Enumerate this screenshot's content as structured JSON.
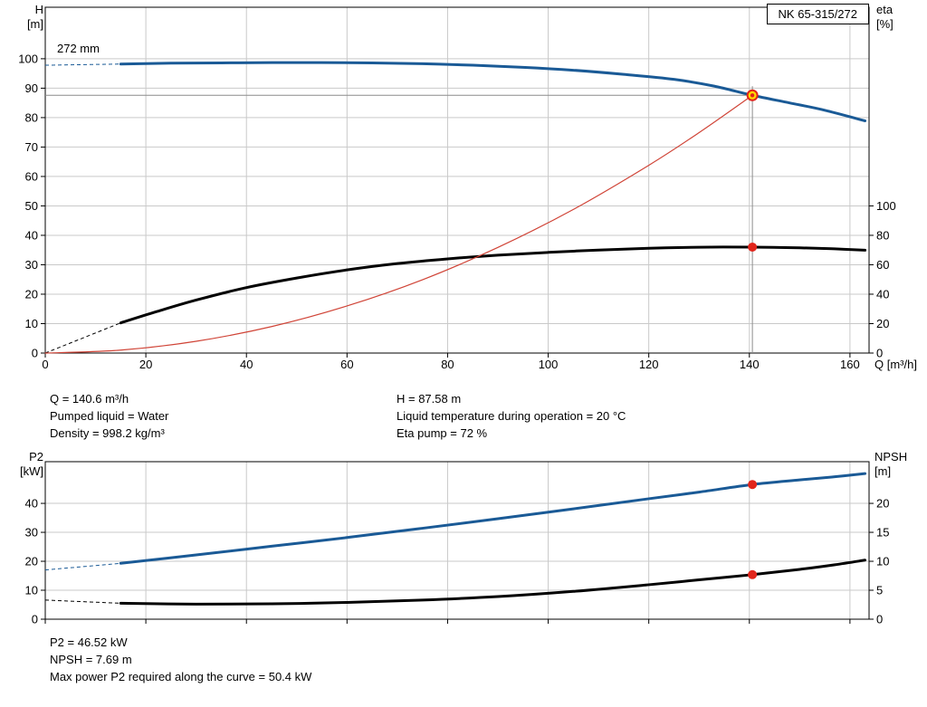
{
  "colors": {
    "curve_blue": "#1a5a96",
    "curve_black": "#000000",
    "curve_red": "#d04437",
    "point_red": "#e1251b",
    "point_yellow": "#ffd800",
    "grid": "#c9c9c9",
    "frame": "#000000",
    "crosshair": "#8c8c8c"
  },
  "top_chart": {
    "title_box": "NK 65-315/272",
    "impeller_trim_label": "272 mm",
    "left_axis_title": [
      "H",
      "[m]"
    ],
    "right_axis_title": [
      "eta",
      "[%]"
    ],
    "x_axis_title": "Q [m³/h]"
  },
  "bottom_chart": {
    "left_axis_title": [
      "P2",
      "[kW]"
    ],
    "right_axis_title": [
      "NPSH",
      "[m]"
    ]
  },
  "info_top": {
    "left": [
      "Q = 140.6 m³/h",
      "Pumped liquid = Water",
      "Density = 998.2 kg/m³"
    ],
    "right": [
      "H = 87.58 m",
      "Liquid temperature during operation = 20 °C",
      "Eta pump = 72 %"
    ]
  },
  "info_bottom": [
    "P2 = 46.52 kW",
    "NPSH = 7.69 m",
    "Max power P2 required along the curve = 50.4 kW"
  ],
  "chart_data": [
    {
      "type": "line",
      "title": "NK 65-315/272",
      "xlabel": "Q [m³/h]",
      "x_ticks": [
        0,
        20,
        40,
        60,
        80,
        100,
        120,
        140,
        160
      ],
      "xlim": [
        0,
        163.8
      ],
      "left_axis": {
        "label": "H [m]",
        "ticks": [
          0,
          10,
          20,
          30,
          40,
          50,
          60,
          70,
          80,
          90,
          100
        ],
        "lim": [
          0,
          117.5
        ]
      },
      "right_axis": {
        "label": "eta [%]",
        "ticks": [
          0,
          20,
          40,
          60,
          80,
          100
        ],
        "lim": [
          0,
          235
        ]
      },
      "series": [
        {
          "name": "head-curve",
          "axis": "left",
          "color": "#1a5a96",
          "width": 3,
          "dash_lead": [
            [
              0,
              97.8
            ],
            [
              15,
              98.2
            ]
          ],
          "points": [
            [
              15,
              98.2
            ],
            [
              25,
              98.5
            ],
            [
              35,
              98.6
            ],
            [
              45,
              98.7
            ],
            [
              55,
              98.7
            ],
            [
              65,
              98.6
            ],
            [
              75,
              98.3
            ],
            [
              85,
              97.8
            ],
            [
              95,
              97.1
            ],
            [
              105,
              96.1
            ],
            [
              115,
              94.7
            ],
            [
              125,
              93.0
            ],
            [
              133,
              90.7
            ],
            [
              140.6,
              87.58
            ],
            [
              148,
              85.0
            ],
            [
              155,
              82.5
            ],
            [
              163,
              78.9
            ]
          ]
        },
        {
          "name": "efficiency-curve",
          "axis": "right",
          "color": "#000000",
          "width": 3,
          "dash_lead": [
            [
              0,
              0
            ],
            [
              15,
              20.5
            ]
          ],
          "points": [
            [
              15,
              20.5
            ],
            [
              22,
              28
            ],
            [
              30,
              36
            ],
            [
              40,
              44.5
            ],
            [
              50,
              51
            ],
            [
              60,
              56.5
            ],
            [
              70,
              60.8
            ],
            [
              80,
              64
            ],
            [
              90,
              66.5
            ],
            [
              100,
              68.4
            ],
            [
              110,
              70
            ],
            [
              120,
              71.2
            ],
            [
              130,
              71.9
            ],
            [
              140.6,
              72
            ],
            [
              150,
              71.5
            ],
            [
              157,
              70.8
            ],
            [
              163,
              69.9
            ]
          ]
        },
        {
          "name": "iso-efficiency-curve",
          "axis": "left",
          "color": "#d04437",
          "width": 1.2,
          "points": [
            [
              0,
              0
            ],
            [
              15,
              1.0
            ],
            [
              30,
              4.0
            ],
            [
              45,
              9.0
            ],
            [
              60,
              16.0
            ],
            [
              75,
              24.9
            ],
            [
              90,
              35.9
            ],
            [
              105,
              48.8
            ],
            [
              120,
              63.8
            ],
            [
              130,
              74.9
            ],
            [
              140.6,
              87.58
            ]
          ]
        }
      ],
      "duty_points": [
        {
          "x": 140.6,
          "y": 87.58,
          "axis": "left",
          "style": "yellow-ring"
        },
        {
          "x": 140.6,
          "y": 72,
          "axis": "right",
          "style": "red"
        }
      ],
      "crosshair": {
        "x": 140.6,
        "y": 87.58
      }
    },
    {
      "type": "line",
      "x_ticks": [
        0,
        20,
        40,
        60,
        80,
        100,
        120,
        140,
        160
      ],
      "xlim": [
        0,
        163.8
      ],
      "left_axis": {
        "label": "P2 [kW]",
        "ticks": [
          0,
          10,
          20,
          30,
          40
        ],
        "lim": [
          0,
          54.4
        ]
      },
      "right_axis": {
        "label": "NPSH [m]",
        "ticks": [
          0,
          5,
          10,
          15,
          20
        ],
        "lim": [
          0,
          27.2
        ]
      },
      "series": [
        {
          "name": "p2-power-curve",
          "axis": "left",
          "color": "#1a5a96",
          "width": 3,
          "dash_lead": [
            [
              0,
              17
            ],
            [
              15,
              19.3
            ]
          ],
          "points": [
            [
              15,
              19.3
            ],
            [
              30,
              22.2
            ],
            [
              45,
              25.2
            ],
            [
              60,
              28.2
            ],
            [
              75,
              31.4
            ],
            [
              90,
              34.7
            ],
            [
              105,
              38.1
            ],
            [
              120,
              41.6
            ],
            [
              130,
              43.9
            ],
            [
              140.6,
              46.52
            ],
            [
              150,
              48.1
            ],
            [
              157,
              49.2
            ],
            [
              163,
              50.3
            ]
          ]
        },
        {
          "name": "npsh-curve",
          "axis": "right",
          "color": "#000000",
          "width": 3,
          "dash_lead": [
            [
              0,
              3.3
            ],
            [
              15,
              2.75
            ]
          ],
          "points": [
            [
              15,
              2.75
            ],
            [
              30,
              2.6
            ],
            [
              45,
              2.65
            ],
            [
              60,
              2.9
            ],
            [
              75,
              3.3
            ],
            [
              90,
              3.9
            ],
            [
              105,
              4.8
            ],
            [
              120,
              5.95
            ],
            [
              130,
              6.8
            ],
            [
              140.6,
              7.69
            ],
            [
              150,
              8.6
            ],
            [
              157,
              9.4
            ],
            [
              163,
              10.2
            ]
          ]
        }
      ],
      "duty_points": [
        {
          "x": 140.6,
          "y": 46.52,
          "axis": "left",
          "style": "red"
        },
        {
          "x": 140.6,
          "y": 7.69,
          "axis": "right",
          "style": "red"
        }
      ]
    }
  ]
}
